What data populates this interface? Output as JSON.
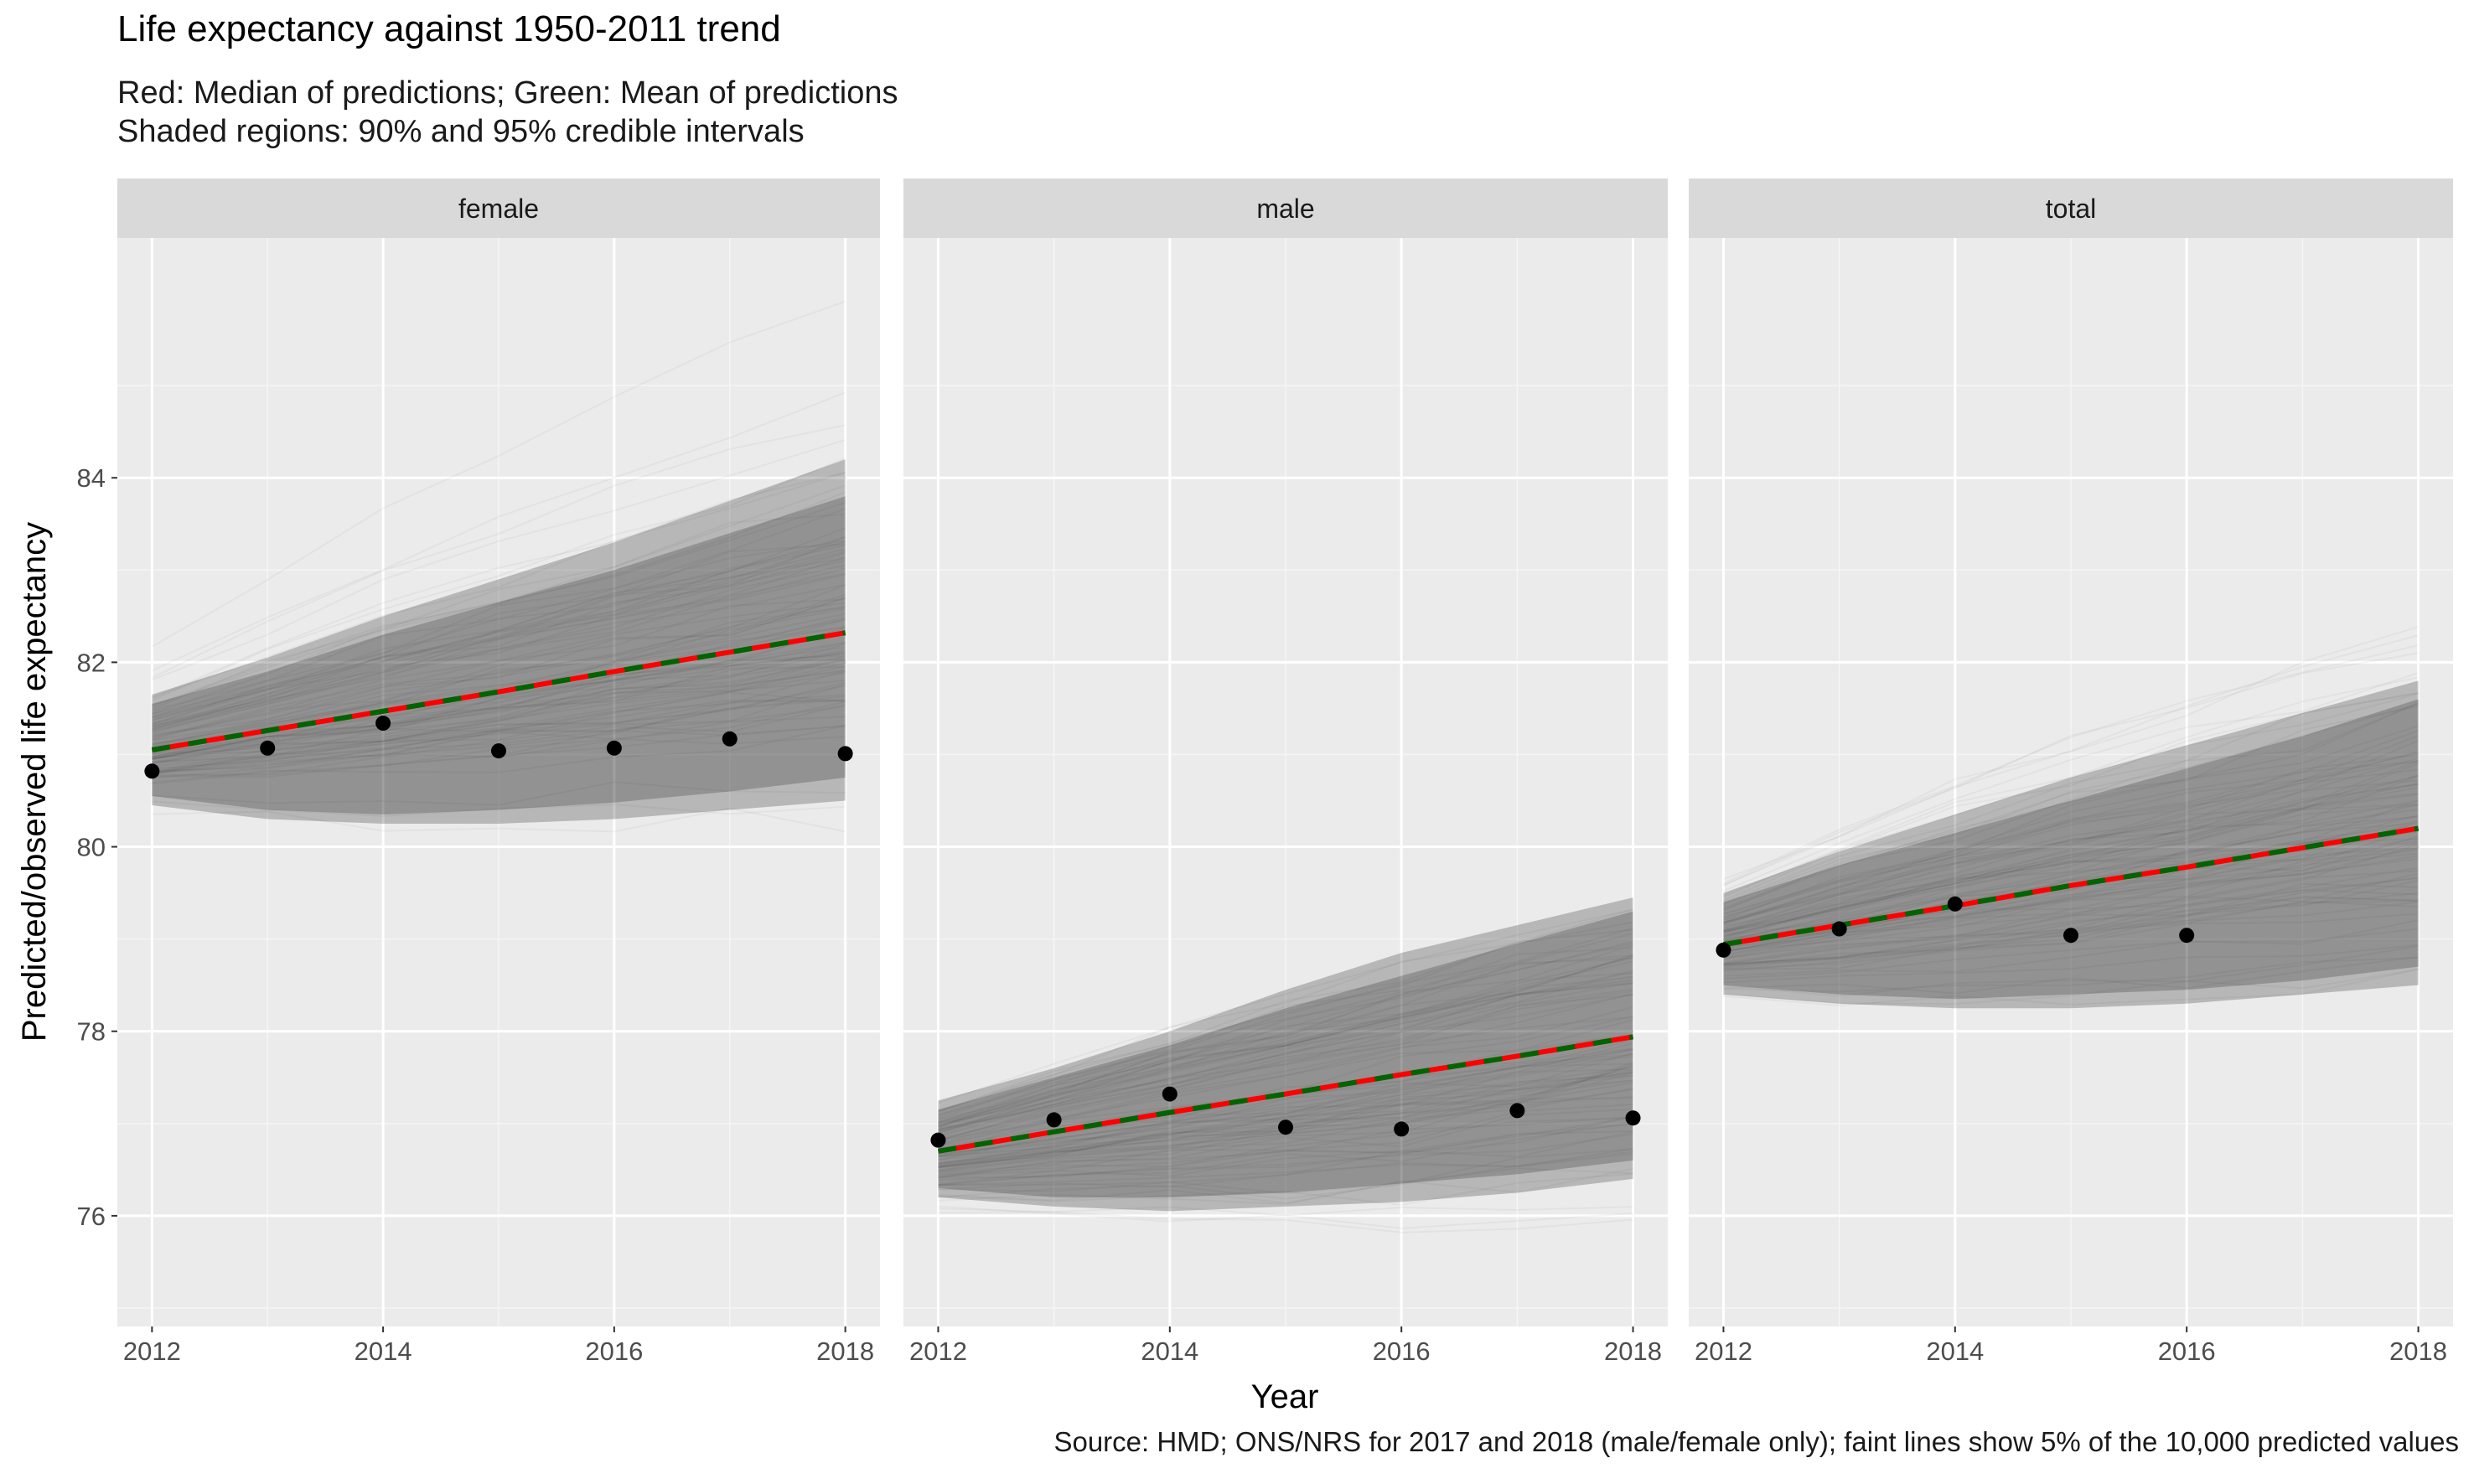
{
  "chart_data": {
    "type": "line",
    "title": "Life expectancy against 1950-2011 trend",
    "subtitle_lines": [
      "Red: Median of predictions; Green: Mean of predictions",
      "Shaded regions: 90% and 95% credible intervals"
    ],
    "caption": "Source: HMD; ONS/NRS for 2017 and 2018 (male/female only); faint lines show 5% of the 10,000 predicted values",
    "xlabel": "Year",
    "ylabel": "Predicted/observed life expectancy",
    "xlim": [
      2011.7,
      2018.3
    ],
    "ylim": [
      74.8,
      86.6
    ],
    "x_ticks": [
      2012,
      2014,
      2016,
      2018
    ],
    "x_tick_labels": [
      "2012",
      "2014",
      "2016",
      "2018"
    ],
    "y_ticks": [
      76,
      78,
      80,
      82,
      84
    ],
    "y_tick_labels": [
      "76",
      "78",
      "80",
      "82",
      "84"
    ],
    "colors": {
      "median": "#ff0000",
      "mean": "#006400",
      "panel_bg": "#ebebeb",
      "strip_bg": "#d9d9d9",
      "points": "#000000"
    },
    "panels": [
      {
        "label": "female",
        "years": [
          2012,
          2013,
          2014,
          2015,
          2016,
          2017,
          2018
        ],
        "median": [
          81.05,
          81.26,
          81.47,
          81.68,
          81.9,
          82.11,
          82.32
        ],
        "mean": [
          81.05,
          81.26,
          81.47,
          81.68,
          81.9,
          82.11,
          82.32
        ],
        "ci90_low": [
          80.55,
          80.4,
          80.35,
          80.4,
          80.48,
          80.6,
          80.75
        ],
        "ci90_high": [
          81.55,
          81.9,
          82.3,
          82.65,
          83.0,
          83.4,
          83.8
        ],
        "ci95_low": [
          80.45,
          80.3,
          80.25,
          80.25,
          80.3,
          80.4,
          80.5
        ],
        "ci95_high": [
          81.65,
          82.05,
          82.5,
          82.9,
          83.3,
          83.75,
          84.2
        ],
        "observed": [
          {
            "x": 2012,
            "y": 80.82
          },
          {
            "x": 2013,
            "y": 81.07
          },
          {
            "x": 2014,
            "y": 81.34
          },
          {
            "x": 2015,
            "y": 81.04
          },
          {
            "x": 2016,
            "y": 81.07
          },
          {
            "x": 2017,
            "y": 81.17
          },
          {
            "x": 2018,
            "y": 81.01
          }
        ]
      },
      {
        "label": "male",
        "years": [
          2012,
          2013,
          2014,
          2015,
          2016,
          2017,
          2018
        ],
        "median": [
          76.7,
          76.91,
          77.12,
          77.32,
          77.53,
          77.73,
          77.94
        ],
        "mean": [
          76.7,
          76.91,
          77.12,
          77.32,
          77.53,
          77.73,
          77.94
        ],
        "ci90_low": [
          76.3,
          76.2,
          76.2,
          76.25,
          76.35,
          76.45,
          76.6
        ],
        "ci90_high": [
          77.15,
          77.5,
          77.85,
          78.25,
          78.6,
          78.95,
          79.3
        ],
        "ci95_low": [
          76.2,
          76.1,
          76.05,
          76.1,
          76.15,
          76.25,
          76.4
        ],
        "ci95_high": [
          77.25,
          77.6,
          78.0,
          78.45,
          78.85,
          79.15,
          79.45
        ],
        "observed": [
          {
            "x": 2012,
            "y": 76.82
          },
          {
            "x": 2013,
            "y": 77.04
          },
          {
            "x": 2014,
            "y": 77.32
          },
          {
            "x": 2015,
            "y": 76.96
          },
          {
            "x": 2016,
            "y": 76.94
          },
          {
            "x": 2017,
            "y": 77.14
          },
          {
            "x": 2018,
            "y": 77.06
          }
        ]
      },
      {
        "label": "total",
        "years": [
          2012,
          2013,
          2014,
          2015,
          2016,
          2017,
          2018
        ],
        "median": [
          78.94,
          79.15,
          79.36,
          79.58,
          79.78,
          79.99,
          80.2
        ],
        "mean": [
          78.94,
          79.15,
          79.36,
          79.58,
          79.78,
          79.99,
          80.2
        ],
        "ci90_low": [
          78.5,
          78.4,
          78.35,
          78.4,
          78.45,
          78.55,
          78.7
        ],
        "ci90_high": [
          79.4,
          79.8,
          80.15,
          80.5,
          80.85,
          81.2,
          81.6
        ],
        "ci95_low": [
          78.4,
          78.3,
          78.25,
          78.25,
          78.3,
          78.4,
          78.5
        ],
        "ci95_high": [
          79.5,
          79.95,
          80.35,
          80.75,
          81.1,
          81.45,
          81.8
        ],
        "observed": [
          {
            "x": 2012,
            "y": 78.88
          },
          {
            "x": 2013,
            "y": 79.11
          },
          {
            "x": 2014,
            "y": 79.38
          },
          {
            "x": 2015,
            "y": 79.04
          },
          {
            "x": 2016,
            "y": 79.04
          }
        ]
      }
    ]
  }
}
